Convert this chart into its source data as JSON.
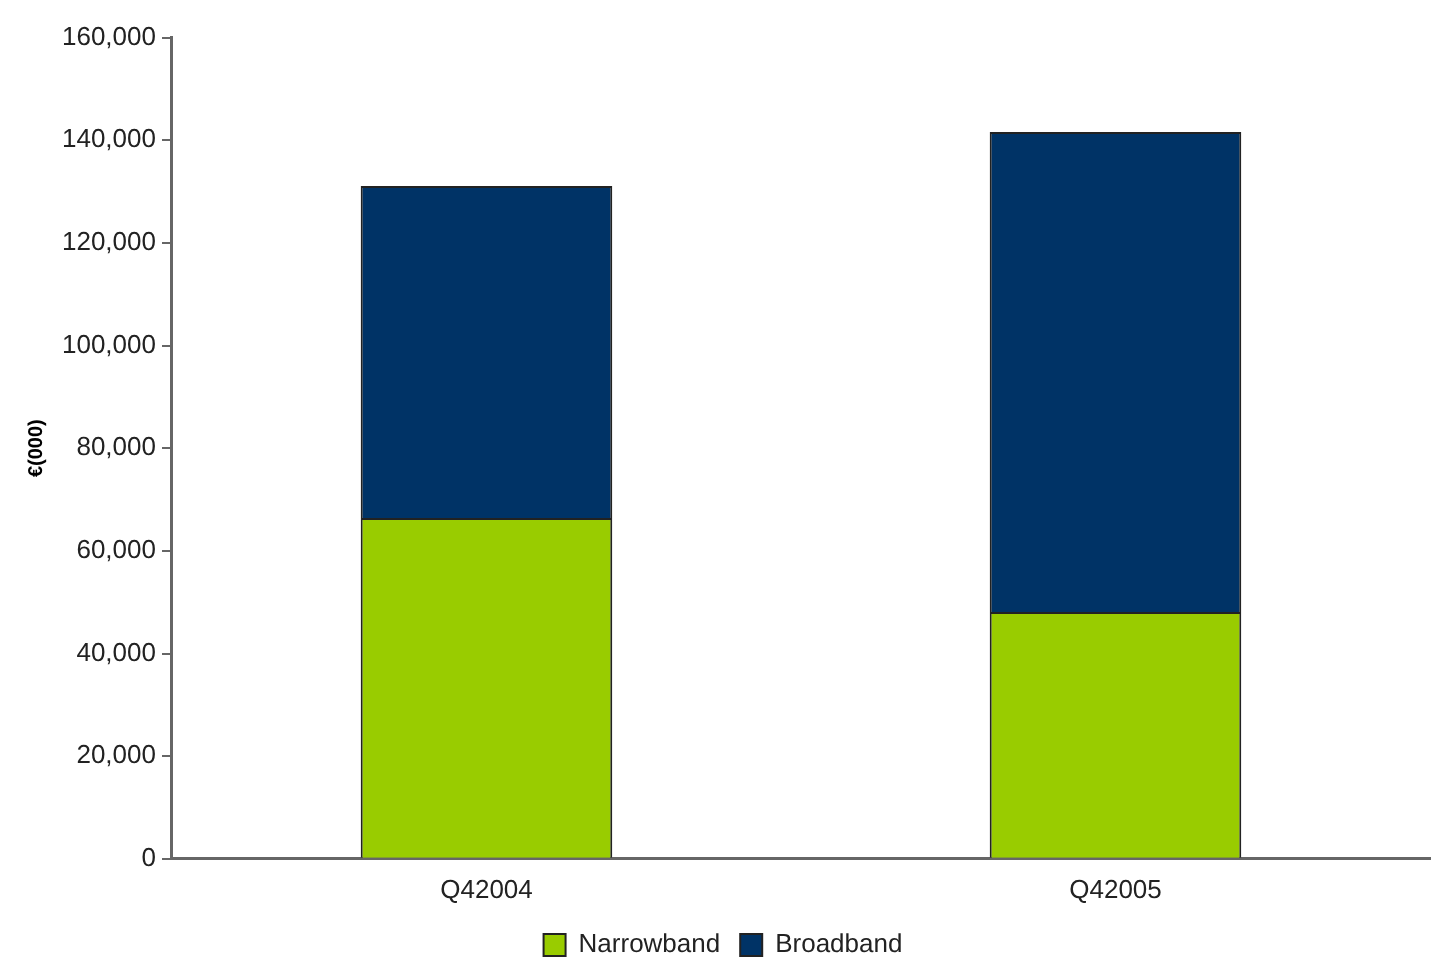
{
  "chart_data": {
    "type": "bar",
    "ylabel": "€(000)",
    "categories": [
      "Q42004",
      "Q42005"
    ],
    "stacked": true,
    "ylim": [
      0,
      160000
    ],
    "yticks": [
      {
        "value": 0,
        "label": "0"
      },
      {
        "value": 20000,
        "label": "20,000"
      },
      {
        "value": 40000,
        "label": "40,000"
      },
      {
        "value": 60000,
        "label": "60,000"
      },
      {
        "value": 80000,
        "label": "80,000"
      },
      {
        "value": 100000,
        "label": "100,000"
      },
      {
        "value": 120000,
        "label": "120,000"
      },
      {
        "value": 140000,
        "label": "140,000"
      },
      {
        "value": 160000,
        "label": "160,000"
      }
    ],
    "grid": false,
    "legend": "bottom",
    "series": [
      {
        "name": "Narrowband",
        "color": "#99cc00",
        "values": [
          66400,
          48100
        ]
      },
      {
        "name": "Broadband",
        "color": "#003366",
        "values": [
          64700,
          93500
        ]
      }
    ]
  }
}
